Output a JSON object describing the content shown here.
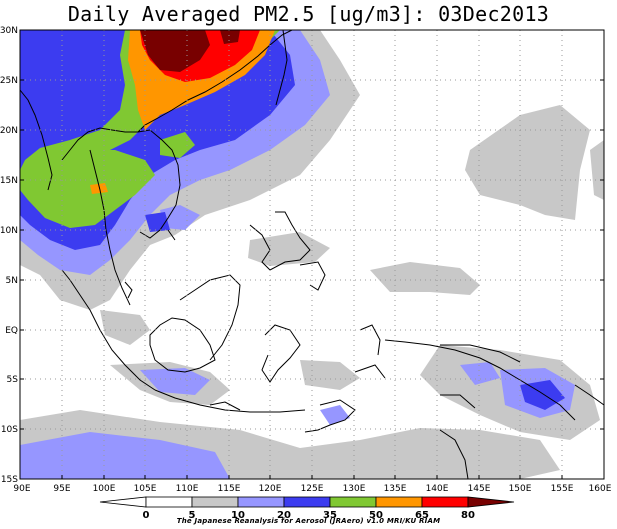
{
  "title": "Daily Averaged PM2.5 [ug/m3]: 03Dec2013",
  "axes": {
    "lat_labels": [
      "30N",
      "25N",
      "20N",
      "15N",
      "10N",
      "5N",
      "EQ",
      "5S",
      "10S",
      "15S"
    ],
    "lon_labels": [
      "90E",
      "95E",
      "100E",
      "105E",
      "110E",
      "115E",
      "120E",
      "125E",
      "130E",
      "135E",
      "140E",
      "145E",
      "150E",
      "155E",
      "160E"
    ]
  },
  "colorbar": {
    "levels": [
      "0",
      "5",
      "10",
      "20",
      "35",
      "50",
      "65",
      "80"
    ],
    "colors": [
      "#ffffff",
      "#ffffff",
      "#c8c8c8",
      "#9696ff",
      "#3c3cf0",
      "#80c832",
      "#ff9600",
      "#ff0000",
      "#780000"
    ]
  },
  "credit": "The Japanese Reanalysis for Aerosol (JRAero) v1.0 MRI/KU RIAM"
}
